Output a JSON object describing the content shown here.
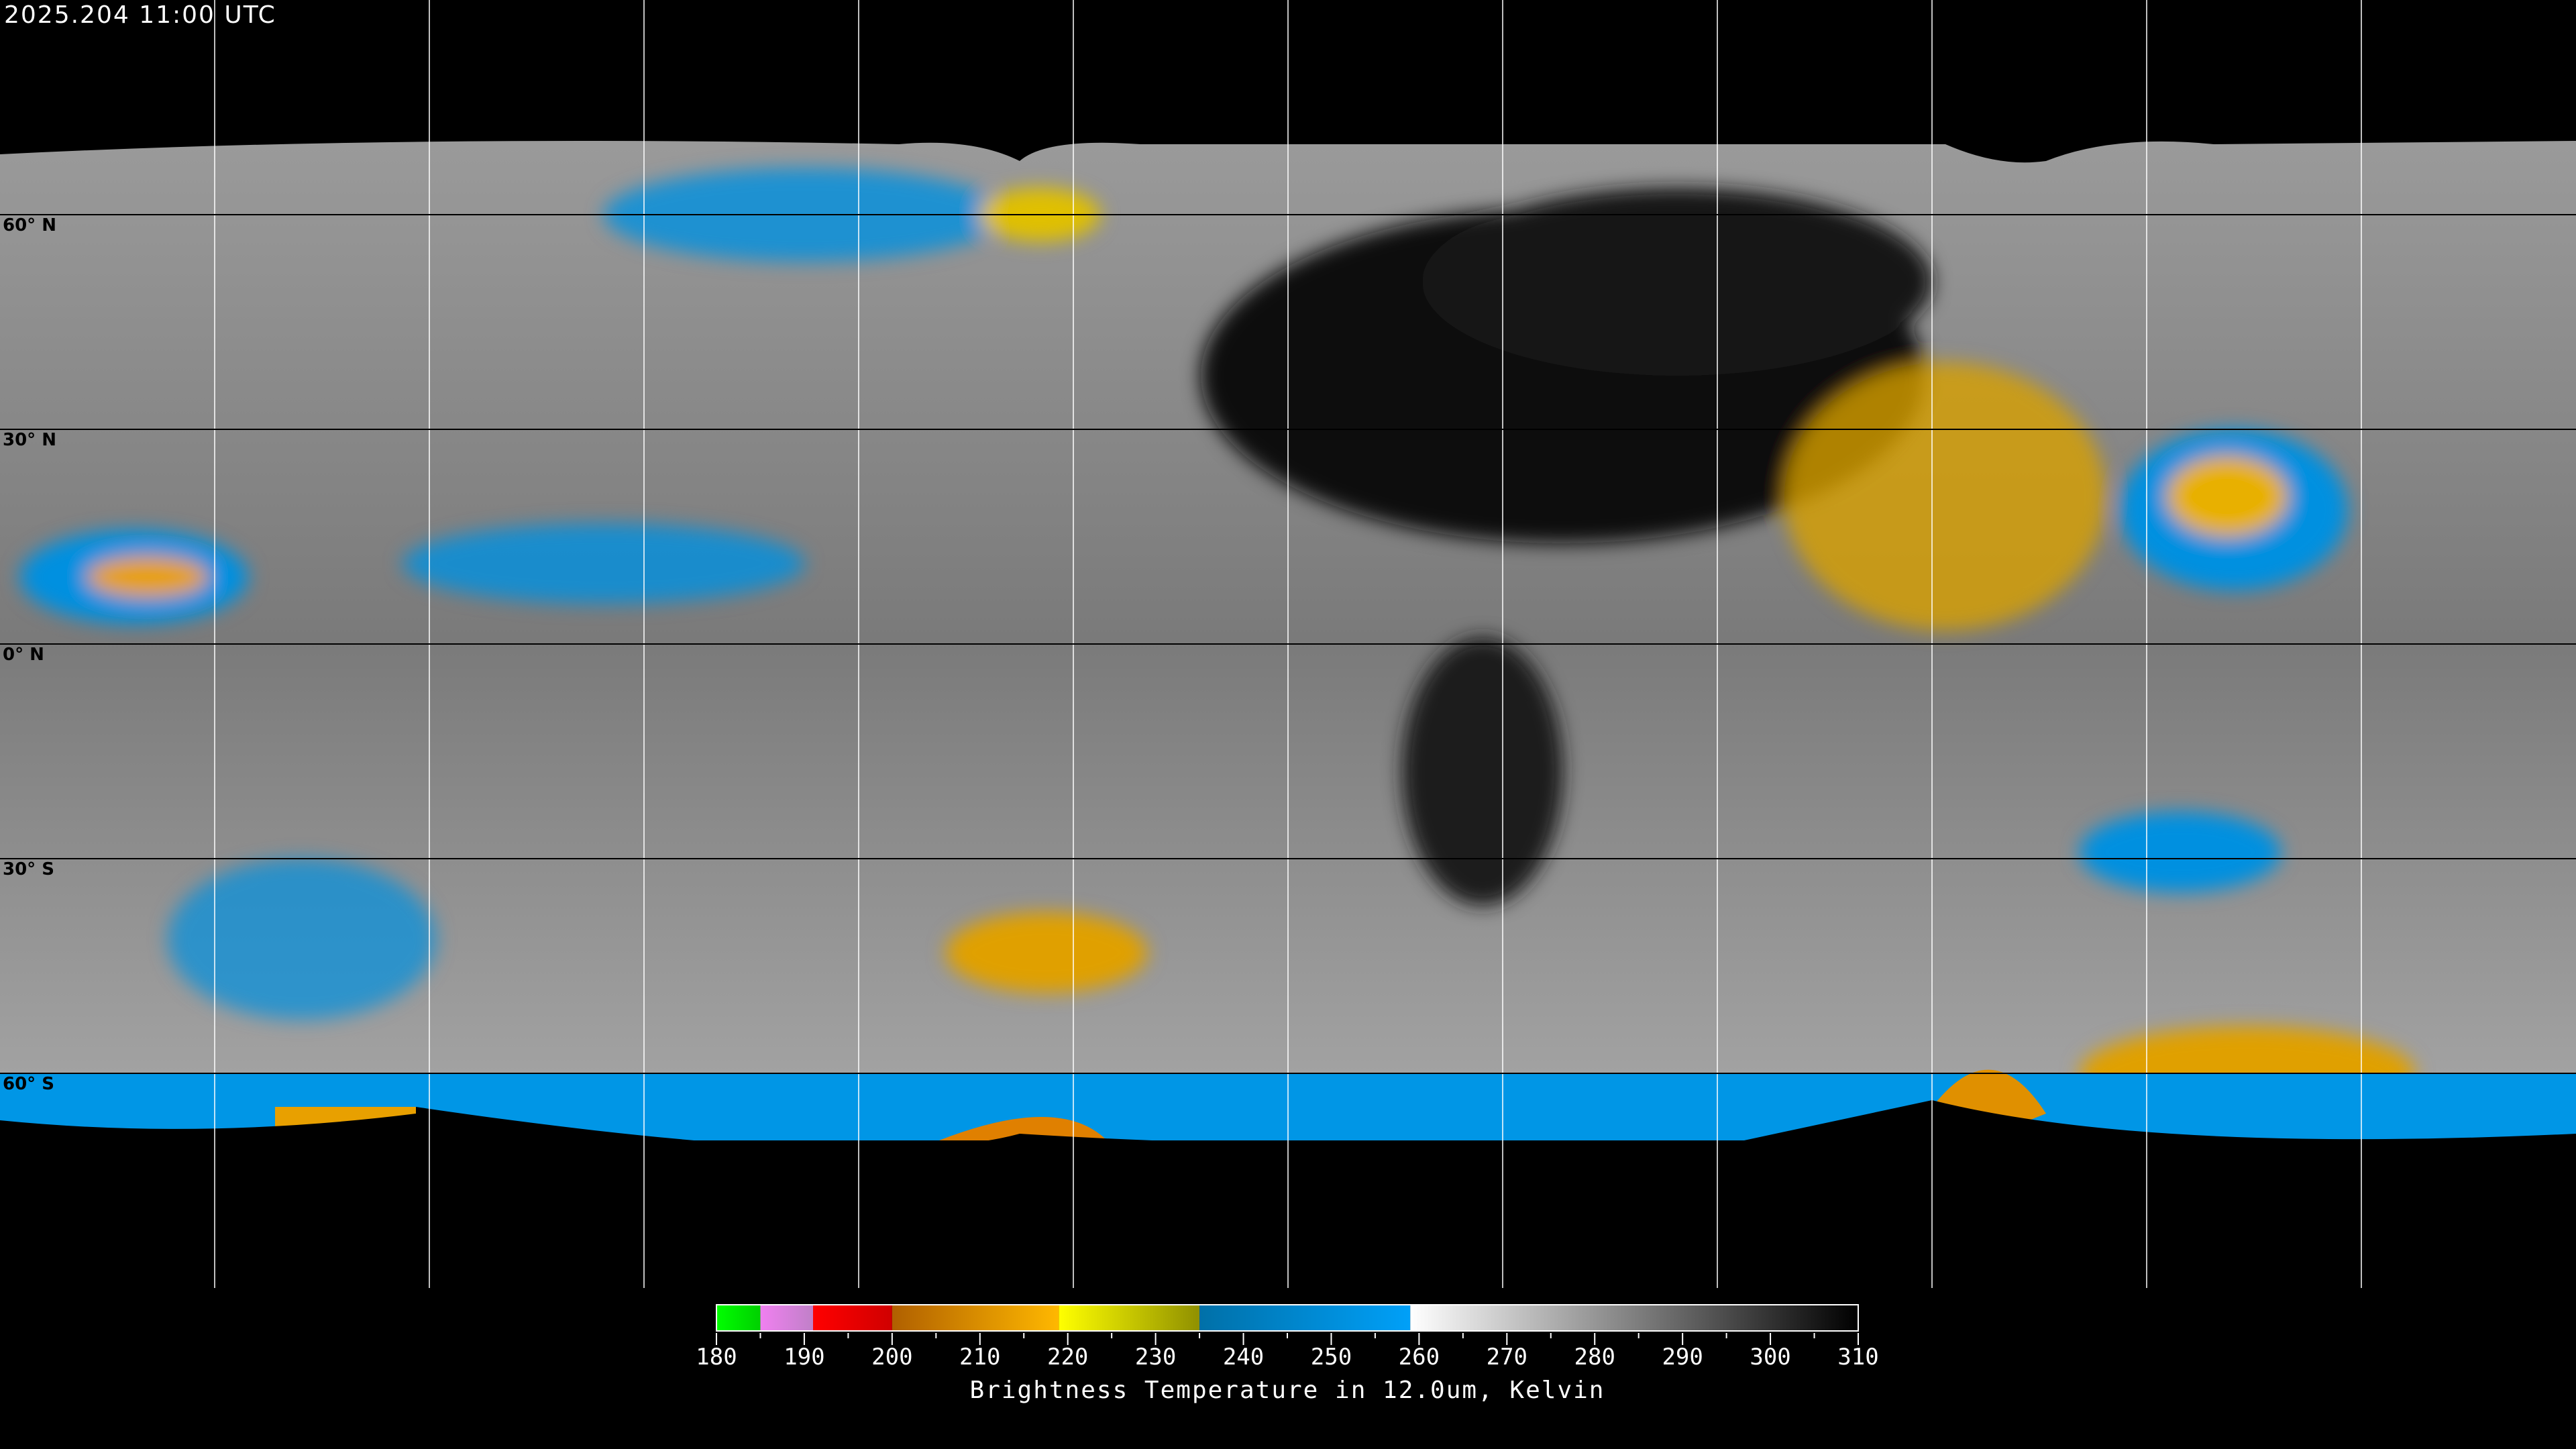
{
  "header": {
    "timestamp": "2025.204 11:00 UTC"
  },
  "map": {
    "projection": "equirectangular",
    "grid_spacing_deg": 30,
    "latitude_labels": [
      "60° N",
      "30° N",
      "0° N",
      "30° S",
      "60° S"
    ],
    "gridline_color": "#000000"
  },
  "colorbar": {
    "title": "Brightness Temperature in 12.0um, Kelvin",
    "min": 180,
    "max": 310,
    "tick_labels": [
      "180",
      "190",
      "200",
      "210",
      "220",
      "230",
      "240",
      "250",
      "260",
      "270",
      "280",
      "290",
      "300",
      "310"
    ],
    "segments": [
      {
        "from": 180,
        "to": 185,
        "colors": [
          "#00ff00",
          "#00d000"
        ]
      },
      {
        "from": 185,
        "to": 191,
        "colors": [
          "#f080f0",
          "#c080c8"
        ]
      },
      {
        "from": 191,
        "to": 200,
        "colors": [
          "#ff0000",
          "#d00000"
        ]
      },
      {
        "from": 200,
        "to": 219,
        "colors": [
          "#b06000",
          "#ffb800"
        ]
      },
      {
        "from": 219,
        "to": 235,
        "colors": [
          "#ffff00",
          "#909000"
        ]
      },
      {
        "from": 235,
        "to": 259,
        "colors": [
          "#0070a8",
          "#00a0f8"
        ]
      },
      {
        "from": 259,
        "to": 310,
        "colors": [
          "#ffffff",
          "#000000"
        ]
      }
    ]
  }
}
